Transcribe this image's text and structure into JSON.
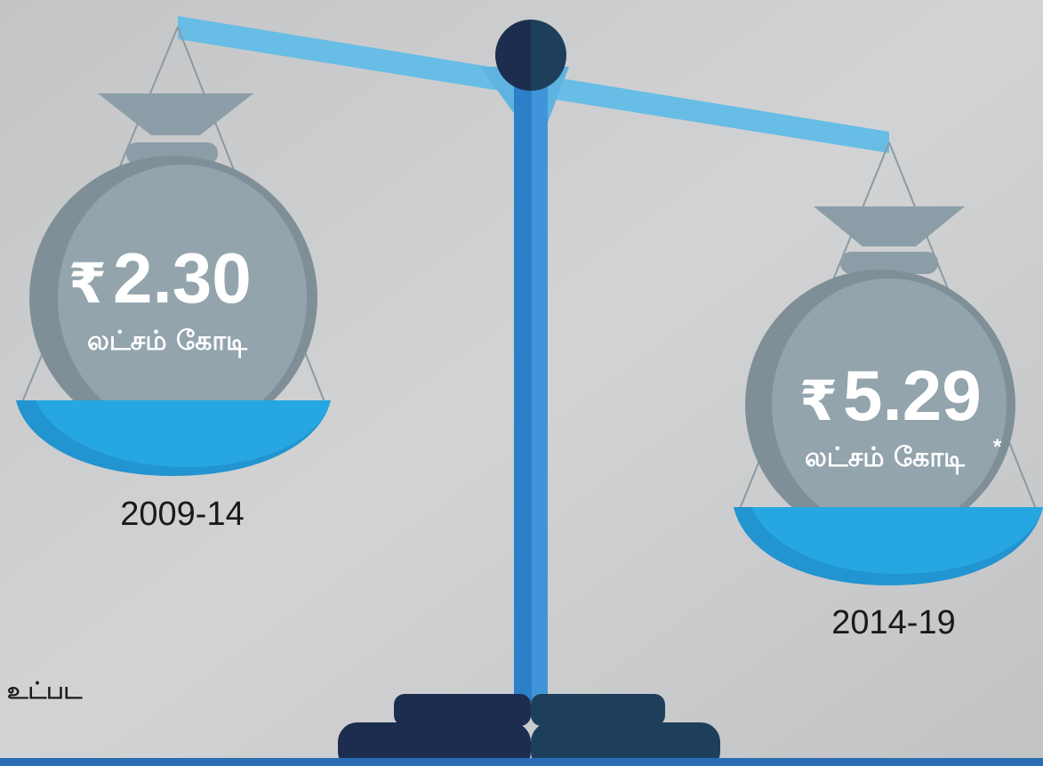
{
  "left": {
    "currency": "₹",
    "amount": "2.30",
    "unit": "லட்சம் கோடி",
    "period": "2009-14"
  },
  "right": {
    "currency": "₹",
    "amount": "5.29",
    "unit": "லட்சம் கோடி",
    "note_mark": "*",
    "period": "2014-19"
  },
  "footnote": "உட்பட"
}
